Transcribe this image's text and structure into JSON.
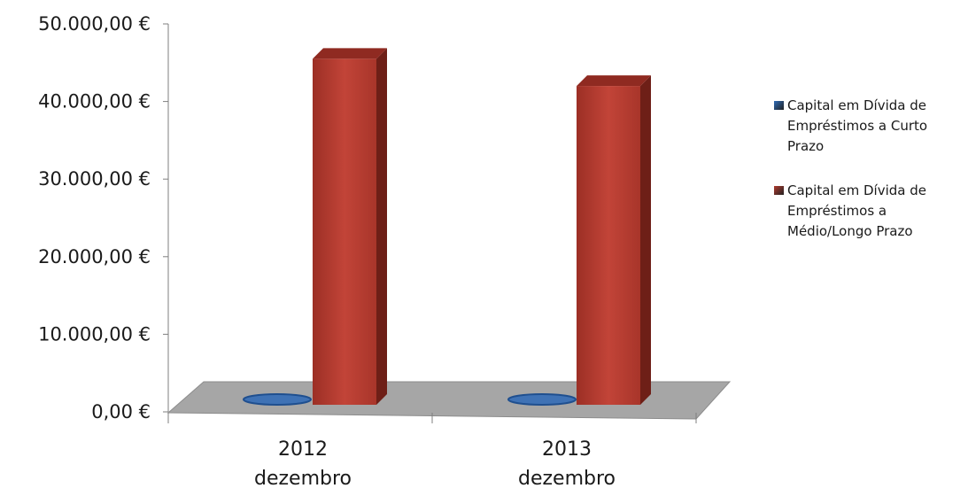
{
  "chart_data": {
    "type": "bar",
    "categories": [
      "2012 dezembro",
      "2013 dezembro"
    ],
    "category_lines": [
      [
        "2012",
        "dezembro"
      ],
      [
        "2013",
        "dezembro"
      ]
    ],
    "series": [
      {
        "name": "Capital em Dívida de Empréstimos a Curto Prazo",
        "values": [
          0,
          0
        ],
        "color": "#2e6bb7"
      },
      {
        "name": "Capital em Dívida de Empréstimos a Médio/Longo Prazo",
        "values": [
          45500,
          42000
        ],
        "color": "#b03a2e"
      }
    ],
    "y_ticks": [
      {
        "value": 0,
        "label": "0,00 €"
      },
      {
        "value": 10000,
        "label": "10.000,00 €"
      },
      {
        "value": 20000,
        "label": "20.000,00 €"
      },
      {
        "value": 30000,
        "label": "30.000,00 €"
      },
      {
        "value": 40000,
        "label": "40.000,00 €"
      },
      {
        "value": 50000,
        "label": "50.000,00 €"
      }
    ],
    "ylim": [
      0,
      50000
    ],
    "title": "",
    "xlabel": "",
    "ylabel": "",
    "grid": false,
    "legend_position": "right",
    "style": "3d-column",
    "floor_color": "#a6a6a6"
  }
}
